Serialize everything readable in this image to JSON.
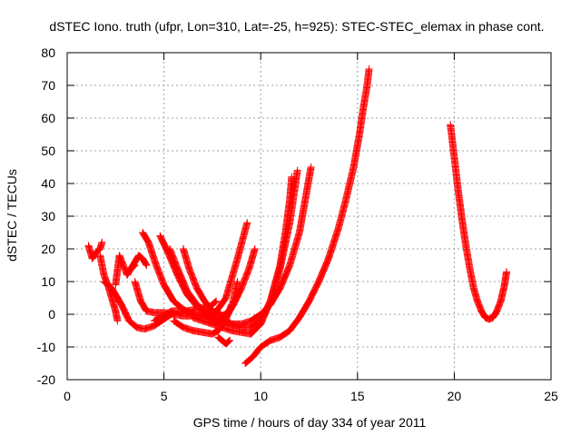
{
  "chart_data": {
    "type": "scatter",
    "title": "dSTEC Iono. truth (ufpr, Lon=310, Lat=-25, h=925): STEC-STEC_elemax in phase cont.",
    "xlabel": "GPS time / hours of day 334 of year 2011",
    "ylabel": "dSTEC  / TECUs",
    "xlim": [
      0,
      25
    ],
    "ylim": [
      -20,
      80
    ],
    "xticks": [
      0,
      5,
      10,
      15,
      20,
      25
    ],
    "yticks": [
      -20,
      -10,
      0,
      10,
      20,
      30,
      40,
      50,
      60,
      70,
      80
    ],
    "grid": true,
    "marker": "+",
    "color": "#ff0000",
    "series": [
      {
        "x": [
          1.1,
          1.3,
          1.5,
          1.7,
          1.8
        ],
        "y": [
          21,
          17,
          19,
          20,
          22
        ]
      },
      {
        "x": [
          1.7,
          1.9,
          2.1,
          2.3,
          2.5,
          2.6
        ],
        "y": [
          18,
          12,
          9,
          5,
          1,
          -2
        ]
      },
      {
        "x": [
          2.5,
          2.7,
          2.9,
          3.1,
          3.3,
          3.5
        ],
        "y": [
          9,
          18,
          15,
          12,
          14,
          15
        ]
      },
      {
        "x": [
          3.3,
          3.5,
          3.7,
          3.9,
          4.1
        ],
        "y": [
          14,
          16,
          18,
          17,
          15
        ]
      },
      {
        "x": [
          1.9,
          2.3,
          2.8,
          3.2,
          3.6,
          4.0,
          4.5,
          5.0,
          5.5
        ],
        "y": [
          10,
          8,
          3,
          -2,
          -4,
          -4.5,
          -3.5,
          -1.5,
          0.5
        ]
      },
      {
        "x": [
          3.5,
          3.8,
          4.1,
          4.5,
          5.0,
          5.5,
          6.0,
          6.5,
          7.0,
          7.5,
          8.0
        ],
        "y": [
          10,
          4,
          1,
          0.5,
          0.5,
          0,
          -0.5,
          -0.5,
          0,
          -1.5,
          -3
        ]
      },
      {
        "x": [
          4.5,
          4.8,
          5.1,
          5.4,
          5.8,
          6.2,
          6.6,
          7.0,
          7.4,
          7.7
        ],
        "y": [
          -2,
          -1,
          0,
          1,
          1,
          1,
          1.5,
          2,
          2.5,
          4
        ]
      },
      {
        "x": [
          3.9,
          4.2,
          4.6,
          5.0,
          5.5,
          6.0,
          6.5,
          7.0,
          7.6,
          8.2,
          8.8,
          9.3
        ],
        "y": [
          25,
          22,
          15,
          9,
          4,
          1.5,
          0,
          -0.5,
          0,
          5,
          17,
          28
        ]
      },
      {
        "x": [
          4.8,
          5.2,
          5.7,
          6.2,
          6.7,
          7.2,
          7.7,
          8.2,
          8.6,
          9.0,
          9.4,
          9.7
        ],
        "y": [
          24,
          19,
          12,
          6,
          2.5,
          0.5,
          -1,
          0,
          3,
          8,
          14,
          20
        ]
      },
      {
        "x": [
          5.3,
          5.7,
          6.2,
          6.7,
          7.2,
          7.6,
          8.0,
          8.4
        ],
        "y": [
          20,
          14,
          7,
          3,
          0.5,
          -1,
          -2,
          -2.5
        ]
      },
      {
        "x": [
          6.0,
          6.3,
          6.7,
          7.1,
          7.5,
          7.9,
          8.2,
          8.5,
          8.8
        ],
        "y": [
          20,
          14,
          8,
          4,
          1,
          0,
          -1,
          2,
          10
        ]
      },
      {
        "x": [
          5.5,
          6.0,
          6.5,
          7.0,
          7.5,
          7.8,
          8.1,
          8.3,
          8.5
        ],
        "y": [
          -2,
          -4,
          -5,
          -5.5,
          -6,
          -5,
          -3,
          0,
          3
        ]
      },
      {
        "x": [
          7.8,
          8.0,
          8.2,
          8.4
        ],
        "y": [
          -7,
          -8,
          -9,
          -8
        ]
      },
      {
        "x": [
          6.5,
          7.0,
          7.5,
          8.0,
          8.5,
          9.0,
          9.5,
          10.0,
          10.5,
          11.0,
          11.3,
          11.5,
          11.6
        ],
        "y": [
          -1,
          -2,
          -3,
          -4,
          -5,
          -5.5,
          -6,
          -3,
          4,
          15,
          26,
          35,
          42
        ]
      },
      {
        "x": [
          7.0,
          7.5,
          8.0,
          8.5,
          9.0,
          9.5,
          10.0,
          10.5,
          11.0,
          11.5,
          11.9
        ],
        "y": [
          0,
          -1,
          -2,
          -3,
          -4,
          -4,
          -2,
          4,
          14,
          28,
          44
        ]
      },
      {
        "x": [
          8.0,
          8.5,
          9.0,
          9.5,
          10.0,
          10.5,
          11.0,
          11.5,
          12.0,
          12.3,
          12.6
        ],
        "y": [
          -2,
          -3,
          -3,
          -2,
          0,
          3,
          8,
          15,
          25,
          35,
          45
        ]
      },
      {
        "x": [
          9.2,
          9.6,
          10.0,
          10.5,
          11.0,
          11.5,
          12.0,
          12.5,
          13.0,
          13.5,
          14.0,
          14.4,
          14.8,
          15.1,
          15.3,
          15.5,
          15.6
        ],
        "y": [
          -15,
          -13,
          -10,
          -8,
          -7,
          -5,
          -1,
          4,
          10,
          17,
          26,
          35,
          45,
          55,
          63,
          70,
          75
        ]
      },
      {
        "x": [
          19.8,
          20.0,
          20.2,
          20.4,
          20.6,
          20.8,
          21.0,
          21.2,
          21.4,
          21.6,
          21.8,
          22.0,
          22.2,
          22.4,
          22.6,
          22.7
        ],
        "y": [
          58,
          48,
          38,
          29,
          21,
          14,
          8,
          4,
          1,
          -1,
          -1.5,
          -1,
          1,
          4,
          9,
          13
        ]
      }
    ]
  }
}
